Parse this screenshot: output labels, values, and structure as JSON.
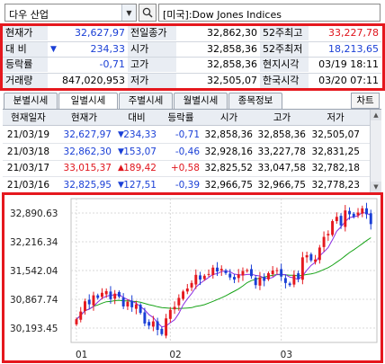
{
  "search": {
    "index_name": "다우 산업",
    "full_name": "[미국]:Dow Jones Indices"
  },
  "summary": {
    "rows": [
      {
        "l1": "현재가",
        "v1": "32,627,97",
        "l2": "전일종가",
        "v2": "32,862,30",
        "l3": "52주최고",
        "v3": "33,227,78"
      },
      {
        "l1": "대  비",
        "v1": "234,33",
        "l2": "시가",
        "v2": "32,858,36",
        "l3": "52주최저",
        "v3": "18,213,65"
      },
      {
        "l1": "등락률",
        "v1": "-0,71",
        "l2": "고가",
        "v2": "32,858,36",
        "l3": "현지시각",
        "v3": "03/19 18:11"
      },
      {
        "l1": "거래량",
        "v1": "847,020,953",
        "l2": "저가",
        "v2": "32,505,07",
        "l3": "한국시각",
        "v3": "03/20 07:11"
      }
    ],
    "change_arrow": "▼"
  },
  "tabs": [
    "분별시세",
    "일별시세",
    "주별시세",
    "월별시세",
    "종목정보"
  ],
  "active_tab": 1,
  "chart_button": "차트",
  "table": {
    "headers": [
      "현재일자",
      "현재가",
      "대비",
      "등락률",
      "시가",
      "고가",
      "저가"
    ],
    "rows": [
      {
        "date": "21/03/19",
        "price": "32,627,97",
        "dir": "▼",
        "chg": "234,33",
        "rate": "-0,71",
        "open": "32,858,36",
        "high": "32,858,36",
        "low": "32,505,07",
        "color": "blue"
      },
      {
        "date": "21/03/18",
        "price": "32,862,30",
        "dir": "▼",
        "chg": "153,07",
        "rate": "-0,46",
        "open": "32,928,16",
        "high": "33,227,78",
        "low": "32,831,25",
        "color": "blue"
      },
      {
        "date": "21/03/17",
        "price": "33,015,37",
        "dir": "▲",
        "chg": "189,42",
        "rate": "+0,58",
        "open": "32,825,52",
        "high": "33,047,58",
        "low": "32,782,18",
        "color": "red"
      },
      {
        "date": "21/03/16",
        "price": "32,825,95",
        "dir": "▼",
        "chg": "127,51",
        "rate": "-0,39",
        "open": "32,966,75",
        "high": "32,966,75",
        "low": "32,778,23",
        "color": "blue"
      }
    ]
  },
  "chart_data": {
    "type": "candlestick",
    "y_ticks": [
      "32,890.63",
      "32,216.34",
      "31,542.04",
      "30,867.74",
      "30,193.45"
    ],
    "x_ticks": [
      "01",
      "02",
      "03"
    ],
    "ylim": [
      29856,
      33227
    ],
    "up_color": "#e5181e",
    "down_color": "#1a3fd6",
    "ma_short_color": "#8a2be2",
    "ma_long_color": "#17a317",
    "closes": [
      30400,
      30580,
      30820,
      30750,
      30960,
      30900,
      31020,
      31060,
      30870,
      31000,
      30930,
      30700,
      30810,
      30680,
      30750,
      30550,
      30300,
      30250,
      30350,
      30150,
      30050,
      30420,
      30620,
      30690,
      30900,
      31050,
      31120,
      31250,
      31440,
      31330,
      31420,
      31460,
      31610,
      31520,
      31580,
      31480,
      31380,
      31330,
      31450,
      31530,
      31550,
      31410,
      31200,
      31380,
      31300,
      31480,
      31540,
      31550,
      31400,
      31250,
      31200,
      31440,
      31350,
      31850,
      31900,
      31780,
      31800,
      32080,
      32330,
      32400,
      32700,
      32800,
      32600,
      32950,
      32860,
      32800,
      32900,
      33000,
      32860,
      32630
    ]
  }
}
